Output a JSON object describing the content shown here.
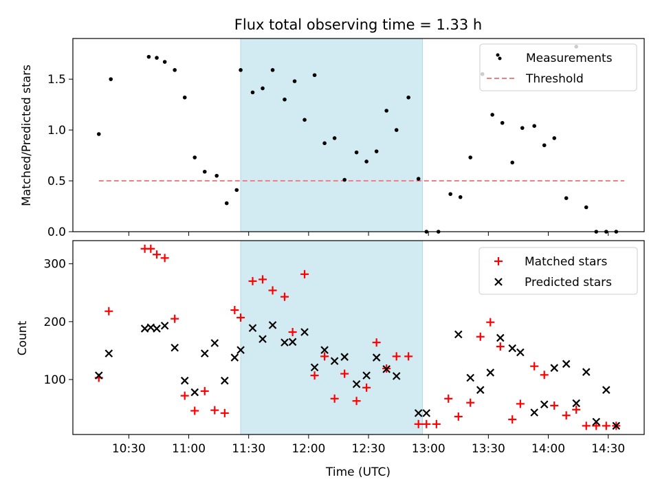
{
  "chart_data": [
    {
      "type": "scatter",
      "title": "Flux total observing time = 1.33 h",
      "ylabel": "Matched/Predicted stars",
      "xlabel": "",
      "ylim": [
        0,
        1.9
      ],
      "yticks": [
        "0.0",
        "0.5",
        "1.0",
        "1.5"
      ],
      "ytick_values": [
        0,
        0.5,
        1.0,
        1.5
      ],
      "legend": {
        "placement": "top-right",
        "entries": [
          "Measurements",
          "Threshold"
        ]
      },
      "shaded_span": [
        "11:26",
        "12:57"
      ],
      "shaded_color": "#d3e9f0",
      "threshold": {
        "name": "Threshold",
        "value": 0.5,
        "x": [
          "10:15",
          "14:38"
        ],
        "color": "#f08080"
      },
      "series": [
        {
          "name": "Measurements",
          "color": "#000000",
          "x": [
            "10:15",
            "10:21",
            "10:40",
            "10:44",
            "10:48",
            "10:53",
            "10:58",
            "11:03",
            "11:08",
            "11:14",
            "11:19",
            "11:24",
            "11:26",
            "11:32",
            "11:37",
            "11:42",
            "11:48",
            "11:53",
            "11:58",
            "12:03",
            "12:08",
            "12:13",
            "12:18",
            "12:24",
            "12:29",
            "12:34",
            "12:39",
            "12:44",
            "12:50",
            "12:55",
            "12:59",
            "13:05",
            "13:11",
            "13:16",
            "13:21",
            "13:27",
            "13:32",
            "13:37",
            "13:42",
            "13:47",
            "13:53",
            "13:58",
            "14:03",
            "14:09",
            "14:14",
            "14:19",
            "14:24",
            "14:29",
            "14:34"
          ],
          "y": [
            0.96,
            1.5,
            1.72,
            1.71,
            1.67,
            1.59,
            1.32,
            0.73,
            0.59,
            0.55,
            0.28,
            0.41,
            1.59,
            1.37,
            1.41,
            1.59,
            1.3,
            1.48,
            1.1,
            1.54,
            0.87,
            0.92,
            0.51,
            0.78,
            0.69,
            0.79,
            1.19,
            1.0,
            1.32,
            0.52,
            0.0,
            0.0,
            0.37,
            0.34,
            0.73,
            1.55,
            1.15,
            1.07,
            0.68,
            1.02,
            1.04,
            0.85,
            0.92,
            0.33,
            1.82,
            0.24,
            0.0,
            0.0,
            0.0
          ]
        }
      ]
    },
    {
      "type": "scatter",
      "title": "",
      "ylabel": "Count",
      "xlabel": "Time (UTC)",
      "ylim": [
        5,
        340
      ],
      "yticks": [
        "100",
        "200",
        "300"
      ],
      "ytick_values": [
        100,
        200,
        300
      ],
      "xticks": [
        "10:30",
        "11:00",
        "11:30",
        "12:00",
        "12:30",
        "13:00",
        "13:30",
        "14:00",
        "14:30"
      ],
      "xlim": [
        "10:02",
        "14:48"
      ],
      "legend": {
        "placement": "top-right",
        "entries": [
          "Matched stars",
          "Predicted stars"
        ]
      },
      "shaded_span": [
        "11:26",
        "12:57"
      ],
      "series": [
        {
          "name": "Matched stars",
          "color": "#ff0000",
          "marker": "+",
          "x": [
            "10:15",
            "10:20",
            "10:38",
            "10:41",
            "10:44",
            "10:48",
            "10:53",
            "10:58",
            "11:03",
            "11:08",
            "11:13",
            "11:18",
            "11:23",
            "11:26",
            "11:32",
            "11:37",
            "11:42",
            "11:48",
            "11:52",
            "11:58",
            "12:03",
            "12:08",
            "12:13",
            "12:18",
            "12:24",
            "12:29",
            "12:34",
            "12:39",
            "12:44",
            "12:50",
            "12:55",
            "12:59",
            "13:04",
            "13:10",
            "13:15",
            "13:21",
            "13:26",
            "13:31",
            "13:36",
            "13:42",
            "13:46",
            "13:53",
            "13:58",
            "14:03",
            "14:09",
            "14:14",
            "14:19",
            "14:24",
            "14:29",
            "14:34"
          ],
          "y": [
            103,
            218,
            326,
            326,
            316,
            310,
            205,
            72,
            46,
            80,
            47,
            42,
            220,
            207,
            270,
            273,
            254,
            243,
            182,
            282,
            107,
            140,
            67,
            110,
            63,
            86,
            164,
            119,
            140,
            140,
            23,
            23,
            23,
            67,
            36,
            60,
            174,
            199,
            157,
            31,
            58,
            123,
            108,
            55,
            38,
            48,
            20,
            20,
            20,
            20
          ]
        },
        {
          "name": "Predicted stars",
          "color": "#000000",
          "marker": "x",
          "x": [
            "10:15",
            "10:20",
            "10:38",
            "10:41",
            "10:44",
            "10:48",
            "10:53",
            "10:58",
            "11:03",
            "11:08",
            "11:13",
            "11:18",
            "11:23",
            "11:26",
            "11:32",
            "11:37",
            "11:42",
            "11:48",
            "11:52",
            "11:58",
            "12:03",
            "12:08",
            "12:13",
            "12:18",
            "12:24",
            "12:29",
            "12:34",
            "12:39",
            "12:44",
            "12:55",
            "12:59",
            "13:15",
            "13:21",
            "13:26",
            "13:31",
            "13:36",
            "13:42",
            "13:46",
            "13:53",
            "13:58",
            "14:03",
            "14:09",
            "14:14",
            "14:19",
            "14:24",
            "14:29",
            "14:34"
          ],
          "y": [
            107,
            145,
            188,
            190,
            188,
            193,
            155,
            98,
            78,
            145,
            163,
            98,
            138,
            151,
            189,
            170,
            194,
            164,
            165,
            182,
            121,
            151,
            132,
            139,
            92,
            107,
            138,
            118,
            106,
            42,
            42,
            178,
            103,
            82,
            112,
            172,
            154,
            147,
            43,
            57,
            120,
            127,
            59,
            113,
            27,
            82,
            20
          ]
        }
      ]
    }
  ],
  "legend_labels": {
    "measurements": "Measurements",
    "threshold": "Threshold",
    "matched": "Matched stars",
    "predicted": "Predicted stars"
  }
}
